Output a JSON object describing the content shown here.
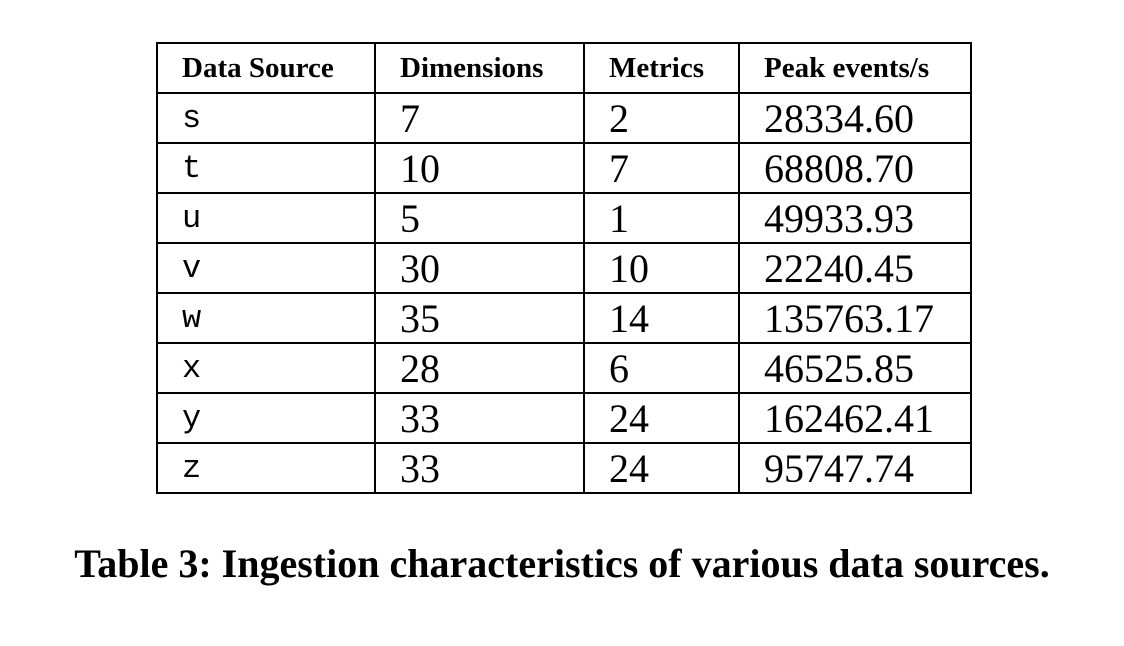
{
  "table": {
    "headers": [
      "Data Source",
      "Dimensions",
      "Metrics",
      "Peak events/s"
    ],
    "rows": [
      {
        "source": "s",
        "dimensions": "7",
        "metrics": "2",
        "peak": "28334.60"
      },
      {
        "source": "t",
        "dimensions": "10",
        "metrics": "7",
        "peak": "68808.70"
      },
      {
        "source": "u",
        "dimensions": "5",
        "metrics": "1",
        "peak": "49933.93"
      },
      {
        "source": "v",
        "dimensions": "30",
        "metrics": "10",
        "peak": "22240.45"
      },
      {
        "source": "w",
        "dimensions": "35",
        "metrics": "14",
        "peak": "135763.17"
      },
      {
        "source": "x",
        "dimensions": "28",
        "metrics": "6",
        "peak": "46525.85"
      },
      {
        "source": "y",
        "dimensions": "33",
        "metrics": "24",
        "peak": "162462.41"
      },
      {
        "source": "z",
        "dimensions": "33",
        "metrics": "24",
        "peak": "95747.74"
      }
    ]
  },
  "caption": "Table 3: Ingestion characteristics of various data sources."
}
